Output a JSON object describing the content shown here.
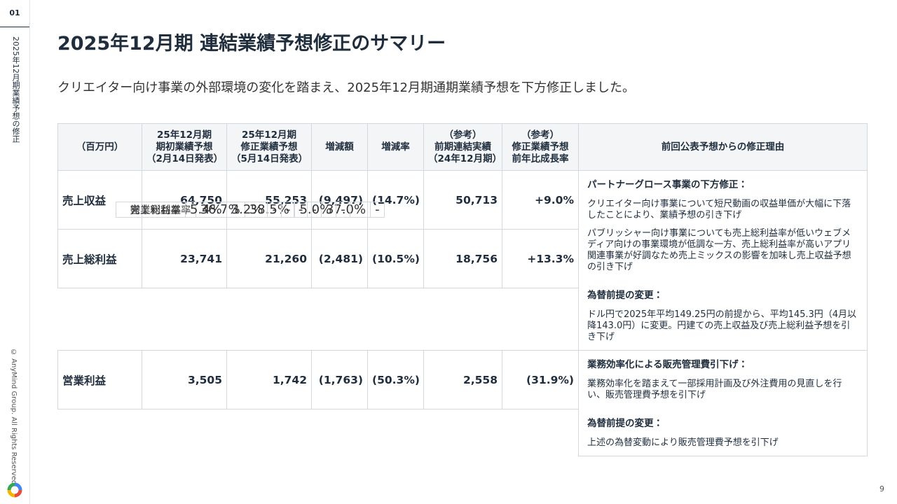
{
  "sidebar": {
    "number": "01",
    "section": "2025年12月期業績予想の修正",
    "copyright": "© AnyMind Group. All Rights Reserved."
  },
  "header": {
    "title": "2025年12月期 連結業績予想修正のサマリー",
    "subtitle": "クリエイター向け事業の外部環境の変化を踏まえ、2025年12月期通期業績予想を下方修正しました。"
  },
  "table": {
    "headers": [
      [
        "（百万円）"
      ],
      [
        "25年12月期",
        "期初業績予想",
        "（2月14日発表）"
      ],
      [
        "25年12月期",
        "修正業績予想",
        "（5月14日発表）"
      ],
      [
        "増減額"
      ],
      [
        "増減率"
      ],
      [
        "（参考）",
        "前期連結実績",
        "（24年12月期）"
      ],
      [
        "（参考）",
        "修正業績予想",
        "前年比成長率"
      ],
      [
        "前回公表予想からの修正理由"
      ]
    ],
    "rows": [
      {
        "label": "売上収益",
        "values": [
          "64,750",
          "55,253",
          "(9,497)",
          "(14.7%)",
          "50,713",
          "+9.0%"
        ]
      },
      {
        "label": "売上総利益",
        "values": [
          "23,741",
          "21,260",
          "(2,481)",
          "(10.5%)",
          "18,756",
          "+13.3%"
        ]
      },
      {
        "label": "売上総利益率",
        "values": [
          "36.7%",
          "38.5%",
          "-",
          "-",
          "37.0%",
          "-"
        ]
      },
      {
        "label": "営業利益",
        "values": [
          "3,505",
          "1,742",
          "(1,763)",
          "(50.3%)",
          "2,558",
          "(31.9%)"
        ]
      },
      {
        "label": "営業利益率",
        "values": [
          "5.4%",
          "3.2%",
          "-",
          "-",
          "5.0%",
          "-"
        ]
      }
    ],
    "notes": [
      {
        "sections": [
          {
            "heading": "パートナーグロース事業の下方修正：",
            "paragraphs": [
              "クリエイター向け事業について短尺動画の収益単価が大幅に下落したことにより、業績予想の引き下げ",
              "パブリッシャー向け事業についても売上総利益率が低いウェブメディア向けの事業環境が低調な一方、売上総利益率が高いアプリ関連事業が好調なため売上ミックスの影響を加味し売上収益予想の引き下げ"
            ]
          },
          {
            "heading": "為替前提の変更：",
            "paragraphs": [
              "ドル円で2025年平均149.25円の前提から、平均145.3円（4月以降143.0円）に変更。円建ての売上収益及び売上総利益予想を引き下げ"
            ]
          }
        ]
      },
      {
        "sections": [
          {
            "heading": "業務効率化による販売管理費引下げ：",
            "paragraphs": [
              "業務効率化を踏まえて一部採用計画及び外注費用の見直しを行い、販売管理費予想を引下げ"
            ]
          },
          {
            "heading": "為替前提の変更：",
            "paragraphs": [
              "上述の為替変動により販売管理費予想を引下げ"
            ]
          }
        ]
      }
    ]
  },
  "page_number": "9"
}
